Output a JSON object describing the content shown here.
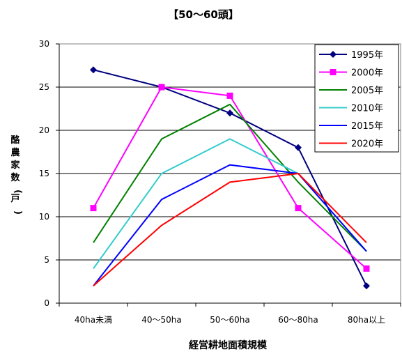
{
  "chart_data": {
    "type": "line",
    "title": "【50～60頭】",
    "xlabel": "経営耕地面積規模",
    "ylabel": "酪農家数(戸)",
    "categories": [
      "40ha未満",
      "40～50ha",
      "50～60ha",
      "60～80ha",
      "80ha以上"
    ],
    "ylim": [
      0,
      30
    ],
    "yticks": [
      0,
      5,
      10,
      15,
      20,
      25,
      30
    ],
    "grid": true,
    "legend_position": "top-right",
    "series": [
      {
        "name": "1995年",
        "values": [
          27,
          25,
          22,
          18,
          2
        ],
        "color": "#000080",
        "marker": "diamond"
      },
      {
        "name": "2000年",
        "values": [
          11,
          25,
          24,
          11,
          4
        ],
        "color": "#ff00ff",
        "marker": "square"
      },
      {
        "name": "2005年",
        "values": [
          7,
          19,
          23,
          14,
          6
        ],
        "color": "#008000",
        "marker": "none"
      },
      {
        "name": "2010年",
        "values": [
          4,
          15,
          19,
          15,
          6
        ],
        "color": "#33cccc",
        "marker": "none"
      },
      {
        "name": "2015年",
        "values": [
          2,
          12,
          16,
          15,
          6
        ],
        "color": "#0000ff",
        "marker": "none"
      },
      {
        "name": "2020年",
        "values": [
          2,
          9,
          14,
          15,
          7
        ],
        "color": "#ff0000",
        "marker": "none"
      }
    ]
  }
}
